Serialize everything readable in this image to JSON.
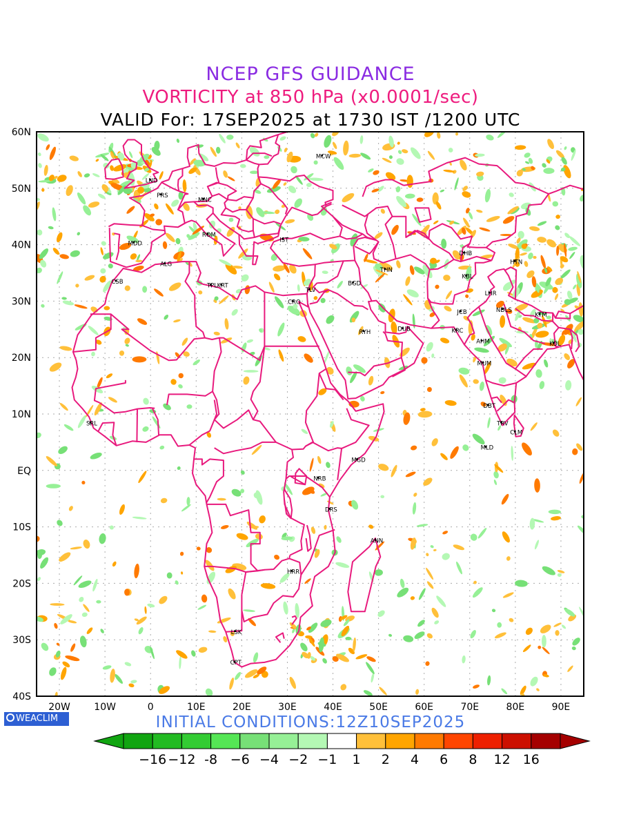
{
  "titles": {
    "line1": "NCEP GFS GUIDANCE",
    "line2": "VORTICITY at 850 hPa (x0.0001/sec)",
    "line3": "VALID For: 17SEP2025 at 1730 IST /1200 UTC"
  },
  "initial_conditions": "INITIAL CONDITIONS:12Z10SEP2025",
  "logo_text": "WEACLIM",
  "axes": {
    "lat_labels": [
      "60N",
      "50N",
      "40N",
      "30N",
      "20N",
      "10N",
      "EQ",
      "10S",
      "20S",
      "30S",
      "40S"
    ],
    "lon_labels": [
      "20W",
      "10W",
      "0",
      "10E",
      "20E",
      "30E",
      "40E",
      "50E",
      "60E",
      "70E",
      "80E",
      "90E"
    ],
    "lat_range": [
      -40,
      60
    ],
    "lon_range": [
      -25,
      95
    ]
  },
  "colorbar": {
    "labels": [
      "−16",
      "−12",
      "-8",
      "−6",
      "−4",
      "−2",
      "−1",
      "1",
      "2",
      "4",
      "6",
      "8",
      "12",
      "16"
    ],
    "colors": [
      "#11a511",
      "#22bb22",
      "#33cc33",
      "#55e655",
      "#77e077",
      "#96f096",
      "#b4f8b4",
      "#ffffff",
      "#ffc03a",
      "#ffa500",
      "#ff7a00",
      "#ff4500",
      "#ee2000",
      "#cc1000",
      "#a50000"
    ],
    "end_colors": [
      "#11a511",
      "#a50000"
    ]
  },
  "colors": {
    "border": "#e8197d",
    "grid": "#aaaaaa",
    "positive": "#ffa500",
    "negative": "#96f096"
  },
  "cities": [
    {
      "code": "MCW",
      "lon": 37.6,
      "lat": 55.8
    },
    {
      "code": "LND",
      "lon": -0.1,
      "lat": 51.5
    },
    {
      "code": "PRS",
      "lon": 2.3,
      "lat": 48.9
    },
    {
      "code": "MNC",
      "lon": 11.6,
      "lat": 48.1
    },
    {
      "code": "ROM",
      "lon": 12.5,
      "lat": 41.9
    },
    {
      "code": "IST",
      "lon": 29.0,
      "lat": 41.0
    },
    {
      "code": "MDD",
      "lon": -3.7,
      "lat": 40.4
    },
    {
      "code": "ALG",
      "lon": 3.1,
      "lat": 36.7
    },
    {
      "code": "CSB",
      "lon": -7.6,
      "lat": 33.6
    },
    {
      "code": "TPL",
      "lon": 13.2,
      "lat": 32.9
    },
    {
      "code": "KRT",
      "lon": 15.5,
      "lat": 32.9
    },
    {
      "code": "TLV",
      "lon": 34.8,
      "lat": 32.1
    },
    {
      "code": "CRO",
      "lon": 31.2,
      "lat": 30.0
    },
    {
      "code": "BGD",
      "lon": 44.4,
      "lat": 33.3
    },
    {
      "code": "THN",
      "lon": 51.4,
      "lat": 35.7
    },
    {
      "code": "RYH",
      "lon": 46.7,
      "lat": 24.7
    },
    {
      "code": "DUB",
      "lon": 55.3,
      "lat": 25.2
    },
    {
      "code": "DHB",
      "lon": 68.8,
      "lat": 38.6
    },
    {
      "code": "KBL",
      "lon": 69.2,
      "lat": 34.5
    },
    {
      "code": "HTN",
      "lon": 79.9,
      "lat": 37.1
    },
    {
      "code": "LHR",
      "lon": 74.3,
      "lat": 31.5
    },
    {
      "code": "JCB",
      "lon": 68.0,
      "lat": 28.2
    },
    {
      "code": "NDLS",
      "lon": 77.2,
      "lat": 28.6
    },
    {
      "code": "KTM",
      "lon": 85.3,
      "lat": 27.7
    },
    {
      "code": "KRC",
      "lon": 67.0,
      "lat": 24.9
    },
    {
      "code": "AHM",
      "lon": 72.6,
      "lat": 23.0
    },
    {
      "code": "KOL",
      "lon": 88.4,
      "lat": 22.6
    },
    {
      "code": "MUM",
      "lon": 72.9,
      "lat": 19.1
    },
    {
      "code": "DBT",
      "lon": 74.0,
      "lat": 11.6
    },
    {
      "code": "TRV",
      "lon": 76.9,
      "lat": 8.5
    },
    {
      "code": "CLM",
      "lon": 79.9,
      "lat": 6.9
    },
    {
      "code": "MLD",
      "lon": 73.5,
      "lat": 4.2
    },
    {
      "code": "SRL",
      "lon": -13.2,
      "lat": 8.5
    },
    {
      "code": "MGD",
      "lon": 45.3,
      "lat": 2.0
    },
    {
      "code": "NRB",
      "lon": 36.8,
      "lat": -1.3
    },
    {
      "code": "DRS",
      "lon": 39.3,
      "lat": -6.8
    },
    {
      "code": "ANN",
      "lon": 49.3,
      "lat": -12.3
    },
    {
      "code": "HRR",
      "lon": 31.0,
      "lat": -17.8
    },
    {
      "code": "LSK",
      "lon": 18.5,
      "lat": -28.5
    },
    {
      "code": "CPT",
      "lon": 18.4,
      "lat": -33.9
    }
  ]
}
